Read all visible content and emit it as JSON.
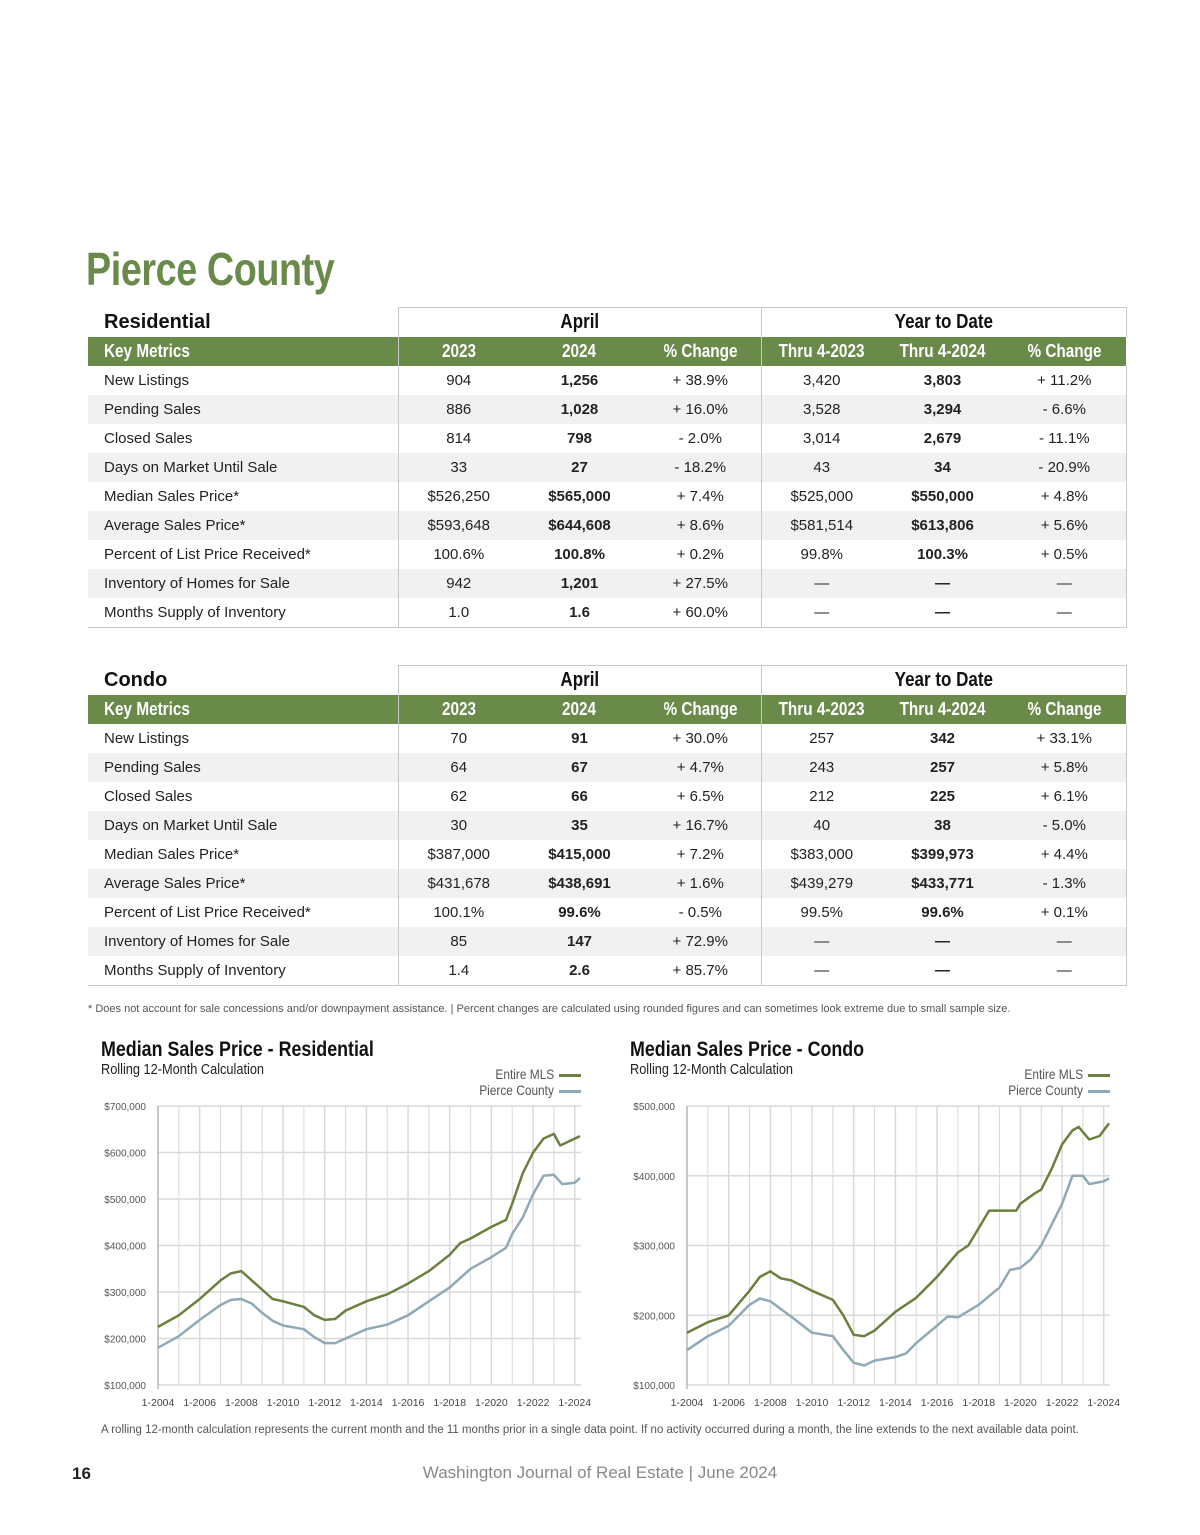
{
  "title": "Pierce County",
  "colors": {
    "accent": "#6a8a4a",
    "mls_line": "#6b7f3f",
    "county_line": "#8eaab6"
  },
  "columns": {
    "key_metrics": "Key Metrics",
    "april": "April",
    "ytd": "Year to Date",
    "cols": [
      "2023",
      "2024",
      "% Change",
      "Thru 4-2023",
      "Thru 4-2024",
      "% Change"
    ]
  },
  "tables": [
    {
      "name": "Residential",
      "rows": [
        [
          "New Listings",
          "904",
          "1,256",
          "+ 38.9%",
          "3,420",
          "3,803",
          "+ 11.2%"
        ],
        [
          "Pending Sales",
          "886",
          "1,028",
          "+ 16.0%",
          "3,528",
          "3,294",
          "- 6.6%"
        ],
        [
          "Closed Sales",
          "814",
          "798",
          "- 2.0%",
          "3,014",
          "2,679",
          "- 11.1%"
        ],
        [
          "Days on Market Until Sale",
          "33",
          "27",
          "- 18.2%",
          "43",
          "34",
          "- 20.9%"
        ],
        [
          "Median Sales Price*",
          "$526,250",
          "$565,000",
          "+ 7.4%",
          "$525,000",
          "$550,000",
          "+ 4.8%"
        ],
        [
          "Average Sales Price*",
          "$593,648",
          "$644,608",
          "+ 8.6%",
          "$581,514",
          "$613,806",
          "+ 5.6%"
        ],
        [
          "Percent of List Price Received*",
          "100.6%",
          "100.8%",
          "+ 0.2%",
          "99.8%",
          "100.3%",
          "+ 0.5%"
        ],
        [
          "Inventory of Homes for Sale",
          "942",
          "1,201",
          "+ 27.5%",
          "—",
          "—",
          "—"
        ],
        [
          "Months Supply of Inventory",
          "1.0",
          "1.6",
          "+ 60.0%",
          "—",
          "—",
          "—"
        ]
      ]
    },
    {
      "name": "Condo",
      "rows": [
        [
          "New Listings",
          "70",
          "91",
          "+ 30.0%",
          "257",
          "342",
          "+ 33.1%"
        ],
        [
          "Pending Sales",
          "64",
          "67",
          "+ 4.7%",
          "243",
          "257",
          "+ 5.8%"
        ],
        [
          "Closed Sales",
          "62",
          "66",
          "+ 6.5%",
          "212",
          "225",
          "+ 6.1%"
        ],
        [
          "Days on Market Until Sale",
          "30",
          "35",
          "+ 16.7%",
          "40",
          "38",
          "- 5.0%"
        ],
        [
          "Median Sales Price*",
          "$387,000",
          "$415,000",
          "+ 7.2%",
          "$383,000",
          "$399,973",
          "+ 4.4%"
        ],
        [
          "Average Sales Price*",
          "$431,678",
          "$438,691",
          "+ 1.6%",
          "$439,279",
          "$433,771",
          "- 1.3%"
        ],
        [
          "Percent of List Price Received*",
          "100.1%",
          "99.6%",
          "- 0.5%",
          "99.5%",
          "99.6%",
          "+ 0.1%"
        ],
        [
          "Inventory of Homes for Sale",
          "85",
          "147",
          "+ 72.9%",
          "—",
          "—",
          "—"
        ],
        [
          "Months Supply of Inventory",
          "1.4",
          "2.6",
          "+ 85.7%",
          "—",
          "—",
          "—"
        ]
      ]
    }
  ],
  "footnote": "* Does not account for sale concessions and/or downpayment assistance. | Percent changes are calculated using rounded figures and can sometimes look extreme due to small sample size.",
  "chart_data": [
    {
      "type": "line",
      "title": "Median Sales Price - Residential",
      "subtitle": "Rolling 12-Month Calculation",
      "xticks": [
        "1-2004",
        "1-2006",
        "1-2008",
        "1-2010",
        "1-2012",
        "1-2014",
        "1-2016",
        "1-2018",
        "1-2020",
        "1-2022",
        "1-2024"
      ],
      "yticks": [
        "$700,000",
        "$600,000",
        "$500,000",
        "$400,000",
        "$300,000",
        "$200,000",
        "$100,000"
      ],
      "ylim": [
        100000,
        700000
      ],
      "xlim": [
        2004,
        2024.3
      ],
      "grid": true,
      "legend": "top-right",
      "series": [
        {
          "name": "Entire MLS",
          "x": [
            2004,
            2005,
            2006,
            2007,
            2007.5,
            2008,
            2008.5,
            2009,
            2009.5,
            2010,
            2011,
            2011.5,
            2012,
            2012.5,
            2013,
            2014,
            2015,
            2016,
            2017,
            2018,
            2018.5,
            2019,
            2020,
            2020.7,
            2021,
            2021.5,
            2022,
            2022.5,
            2023,
            2023.3,
            2024,
            2024.25
          ],
          "y": [
            225000,
            250000,
            285000,
            325000,
            340000,
            345000,
            325000,
            305000,
            285000,
            280000,
            268000,
            250000,
            240000,
            242000,
            260000,
            280000,
            295000,
            318000,
            345000,
            380000,
            405000,
            415000,
            440000,
            455000,
            490000,
            555000,
            600000,
            630000,
            640000,
            615000,
            630000,
            635000
          ]
        },
        {
          "name": "Pierce County",
          "x": [
            2004,
            2005,
            2006,
            2007,
            2007.5,
            2008,
            2008.5,
            2009,
            2009.5,
            2010,
            2011,
            2011.5,
            2012,
            2012.5,
            2013,
            2014,
            2015,
            2016,
            2017,
            2018,
            2019,
            2020,
            2020.7,
            2021,
            2021.5,
            2022,
            2022.5,
            2023,
            2023.4,
            2024,
            2024.25
          ],
          "y": [
            180000,
            205000,
            240000,
            272000,
            283000,
            285000,
            275000,
            255000,
            238000,
            228000,
            220000,
            203000,
            190000,
            190000,
            200000,
            220000,
            230000,
            250000,
            280000,
            310000,
            350000,
            375000,
            395000,
            425000,
            460000,
            510000,
            550000,
            552000,
            532000,
            535000,
            545000
          ]
        }
      ]
    },
    {
      "type": "line",
      "title": "Median Sales Price - Condo",
      "subtitle": "Rolling 12-Month Calculation",
      "xticks": [
        "1-2004",
        "1-2006",
        "1-2008",
        "1-2010",
        "1-2012",
        "1-2014",
        "1-2016",
        "1-2018",
        "1-2020",
        "1-2022",
        "1-2024"
      ],
      "yticks": [
        "$500,000",
        "$400,000",
        "$300,000",
        "$200,000",
        "$100,000"
      ],
      "ylim": [
        100000,
        500000
      ],
      "xlim": [
        2004,
        2024.3
      ],
      "grid": true,
      "legend": "top-right",
      "series": [
        {
          "name": "Entire MLS",
          "x": [
            2004,
            2005,
            2006,
            2007,
            2007.5,
            2008,
            2008.5,
            2009,
            2010,
            2011,
            2011.5,
            2012,
            2012.5,
            2013,
            2014,
            2015,
            2016,
            2017,
            2017.5,
            2018,
            2018.5,
            2019,
            2019.8,
            2020,
            2020.7,
            2021,
            2021.5,
            2022,
            2022.5,
            2022.8,
            2023.3,
            2023.8,
            2024,
            2024.25
          ],
          "y": [
            175000,
            190000,
            200000,
            235000,
            255000,
            263000,
            253000,
            250000,
            235000,
            222000,
            200000,
            172000,
            170000,
            178000,
            205000,
            225000,
            255000,
            290000,
            300000,
            325000,
            350000,
            350000,
            350000,
            360000,
            375000,
            380000,
            410000,
            445000,
            465000,
            470000,
            452000,
            457000,
            465000,
            475000
          ]
        },
        {
          "name": "Pierce County",
          "x": [
            2004,
            2005,
            2006,
            2007,
            2007.5,
            2008,
            2009,
            2010,
            2011,
            2011.5,
            2012,
            2012.5,
            2013,
            2014,
            2014.5,
            2015,
            2016,
            2016.5,
            2017,
            2018,
            2019,
            2019.5,
            2020,
            2020.5,
            2021,
            2021.5,
            2022,
            2022.5,
            2023,
            2023.3,
            2024,
            2024.25
          ],
          "y": [
            150000,
            170000,
            185000,
            215000,
            224000,
            220000,
            198000,
            175000,
            170000,
            150000,
            132000,
            128000,
            135000,
            140000,
            145000,
            160000,
            185000,
            198000,
            197000,
            215000,
            240000,
            265000,
            268000,
            280000,
            300000,
            330000,
            360000,
            400000,
            400000,
            388000,
            392000,
            396000
          ]
        }
      ]
    }
  ],
  "chart_footnote": "A rolling 12-month calculation represents the current month and the 11 months prior in a single data point. If no activity occurred during a month, the line extends to the next available data point.",
  "page_number": "16",
  "journal": "Washington Journal of Real Estate | June 2024"
}
